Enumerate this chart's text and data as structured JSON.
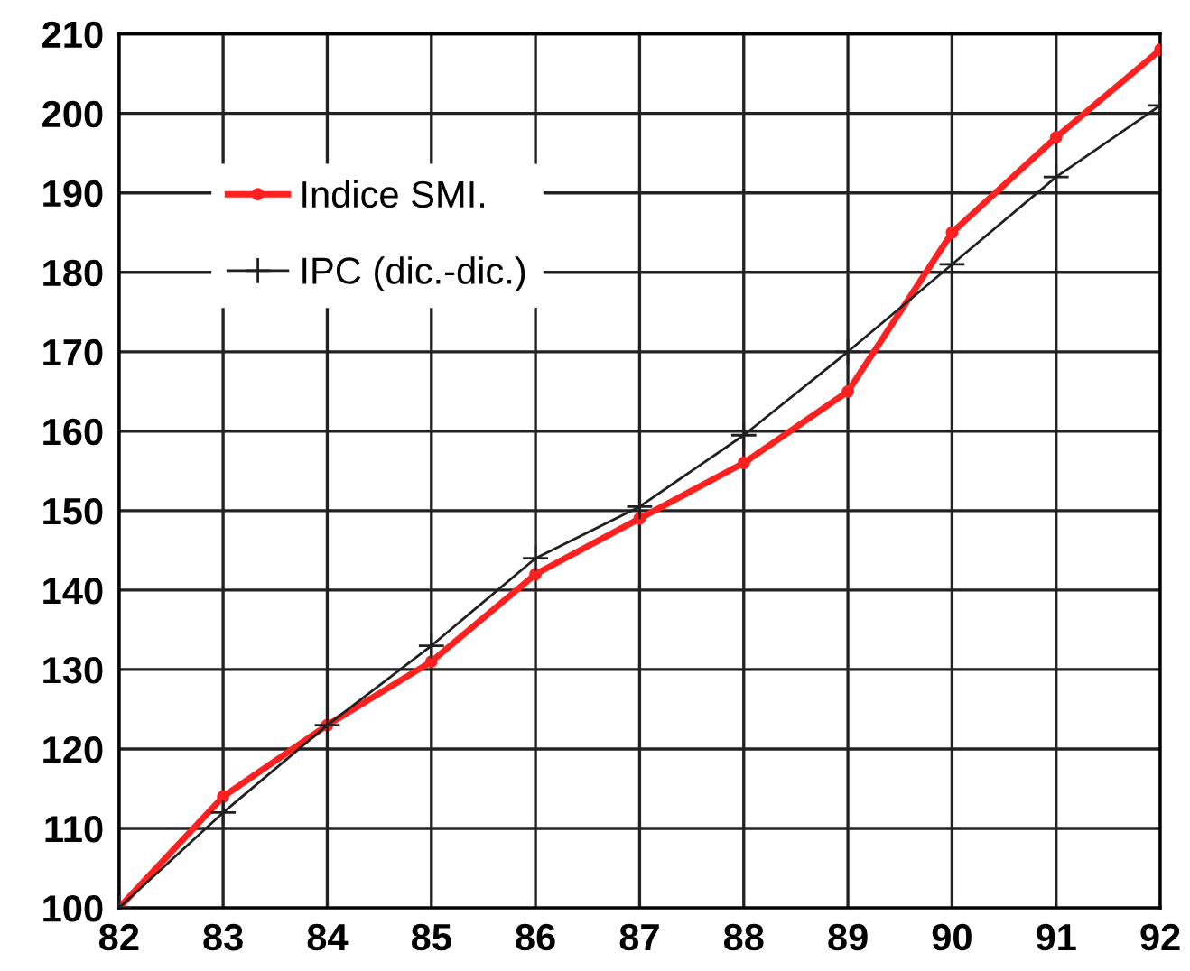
{
  "chart_data": {
    "type": "line",
    "x": [
      82,
      83,
      84,
      85,
      86,
      87,
      88,
      89,
      90,
      91,
      92
    ],
    "series": [
      {
        "name": "Indice SMI.",
        "color": "#ff2020",
        "marker": "circle",
        "values": [
          100,
          114,
          123,
          131,
          142,
          149,
          156,
          165,
          185,
          197,
          208
        ]
      },
      {
        "name": "IPC (dic.-dic.)",
        "color": "#202020",
        "marker": "cross",
        "values": [
          100,
          112,
          123,
          133,
          144,
          150.5,
          159.5,
          170,
          181,
          192,
          201
        ]
      }
    ],
    "xlim": [
      82,
      92
    ],
    "xticks": [
      82,
      83,
      84,
      85,
      86,
      87,
      88,
      89,
      90,
      91,
      92
    ],
    "ylim": [
      100,
      210
    ],
    "yticks": [
      100,
      110,
      120,
      130,
      140,
      150,
      160,
      170,
      180,
      190,
      200,
      210
    ],
    "grid": true,
    "legend": "top left",
    "line_style": "solid"
  }
}
